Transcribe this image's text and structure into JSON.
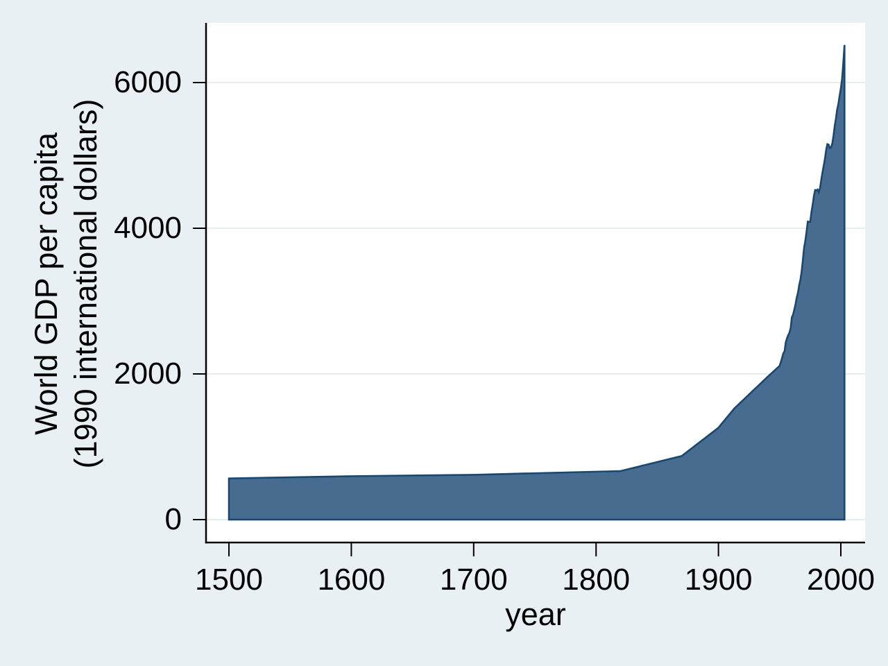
{
  "chart_data": {
    "type": "area",
    "title": "",
    "xlabel": "year",
    "ylabel": "World GDP per capita\n(1990 international dollars)",
    "x_ticks": [
      1500,
      1600,
      1700,
      1800,
      1900,
      2000
    ],
    "y_ticks": [
      0,
      2000,
      4000,
      6000
    ],
    "xlim": [
      1500,
      2003
    ],
    "ylim": [
      0,
      6700
    ],
    "grid": true,
    "legend": "none",
    "series": [
      {
        "name": "World GDP per capita",
        "baseline": 0,
        "points": [
          [
            1500,
            566
          ],
          [
            1600,
            596
          ],
          [
            1700,
            615
          ],
          [
            1820,
            667
          ],
          [
            1870,
            873
          ],
          [
            1900,
            1262
          ],
          [
            1913,
            1526
          ],
          [
            1940,
            1958
          ],
          [
            1950,
            2111
          ],
          [
            1951,
            2165
          ],
          [
            1952,
            2220
          ],
          [
            1953,
            2283
          ],
          [
            1954,
            2310
          ],
          [
            1955,
            2432
          ],
          [
            1956,
            2490
          ],
          [
            1957,
            2531
          ],
          [
            1958,
            2565
          ],
          [
            1959,
            2631
          ],
          [
            1960,
            2777
          ],
          [
            1961,
            2815
          ],
          [
            1962,
            2886
          ],
          [
            1963,
            2958
          ],
          [
            1964,
            3051
          ],
          [
            1965,
            3118
          ],
          [
            1966,
            3222
          ],
          [
            1967,
            3296
          ],
          [
            1968,
            3412
          ],
          [
            1969,
            3565
          ],
          [
            1970,
            3736
          ],
          [
            1971,
            3827
          ],
          [
            1972,
            3953
          ],
          [
            1973,
            4091
          ],
          [
            1974,
            4088
          ],
          [
            1975,
            4089
          ],
          [
            1976,
            4224
          ],
          [
            1977,
            4320
          ],
          [
            1978,
            4444
          ],
          [
            1979,
            4525
          ],
          [
            1980,
            4520
          ],
          [
            1981,
            4532
          ],
          [
            1982,
            4494
          ],
          [
            1983,
            4548
          ],
          [
            1984,
            4665
          ],
          [
            1985,
            4764
          ],
          [
            1986,
            4857
          ],
          [
            1987,
            4953
          ],
          [
            1988,
            5072
          ],
          [
            1989,
            5154
          ],
          [
            1990,
            5149
          ],
          [
            1991,
            5100
          ],
          [
            1992,
            5110
          ],
          [
            1993,
            5164
          ],
          [
            1994,
            5268
          ],
          [
            1995,
            5404
          ],
          [
            1996,
            5503
          ],
          [
            1997,
            5629
          ],
          [
            1998,
            5709
          ],
          [
            1999,
            5816
          ],
          [
            2000,
            5920
          ],
          [
            2001,
            6049
          ],
          [
            2002,
            6261
          ],
          [
            2003,
            6516
          ]
        ]
      }
    ],
    "colors": {
      "background": "#e9f0f3",
      "plot_background": "#ffffff",
      "grid": "#e5eef1",
      "axis": "#000000",
      "text": "#000000",
      "area_fill": "#476c8f",
      "area_line": "#1a476f"
    }
  }
}
